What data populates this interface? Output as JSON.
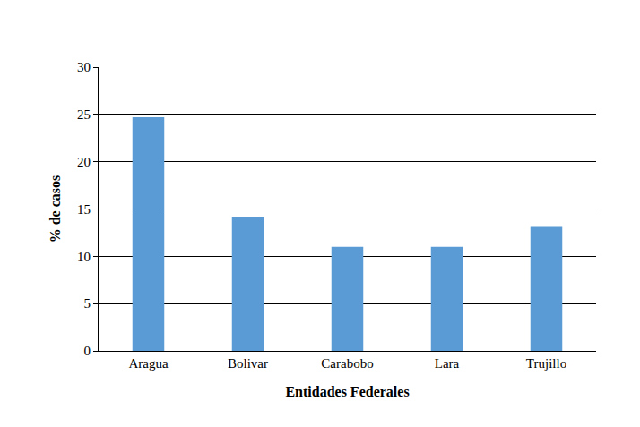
{
  "chart_data": {
    "type": "bar",
    "x_label": "Entidades Federales",
    "y_label": "% de casos",
    "categories": [
      "Aragua",
      "Bolivar",
      "Carabobo",
      "Lara",
      "Trujillo"
    ],
    "values": [
      24.7,
      14.2,
      11,
      11,
      13.1
    ],
    "color": "#5b9bd5",
    "ylim": [
      0,
      30
    ],
    "yticks": [
      0,
      5,
      10,
      15,
      20,
      25,
      30
    ],
    "grid": true
  }
}
